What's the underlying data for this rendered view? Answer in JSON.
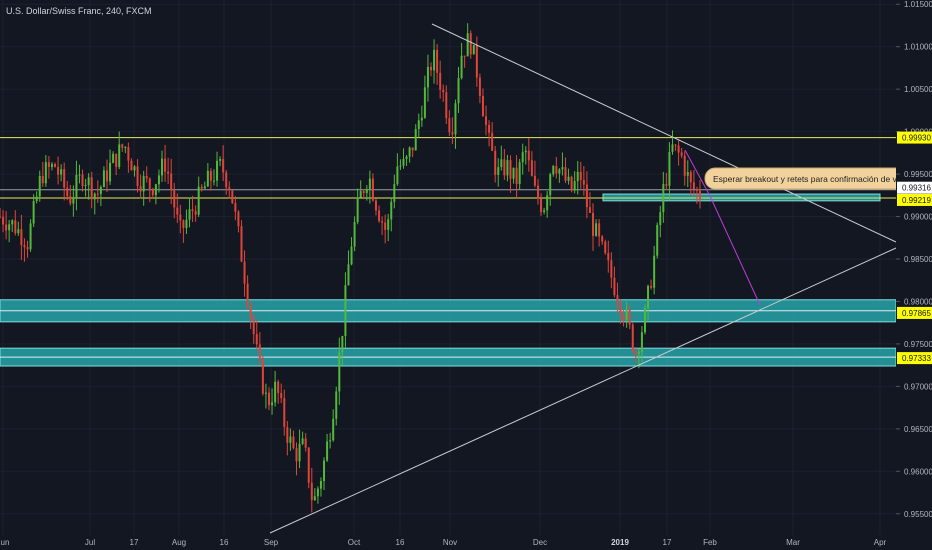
{
  "header": {
    "title": "U.S. Dollar/Swiss Franc, 240, FXCM"
  },
  "chart_data": {
    "type": "candlestick",
    "symbol": "U.S. Dollar/Swiss Franc",
    "interval": "240",
    "source": "FXCM",
    "ylim": [
      0.9525,
      1.0155
    ],
    "y_ticks": [
      "1.01500",
      "1.01000",
      "1.00500",
      "1.00000",
      "0.99500",
      "0.99000",
      "0.98500",
      "0.98000",
      "0.97500",
      "0.97000",
      "0.96500",
      "0.96000",
      "0.95500"
    ],
    "x_ticks": [
      "Jun",
      "Jul",
      "17",
      "Aug",
      "16",
      "Sep",
      "Oct",
      "16",
      "Nov",
      "Dec",
      "2019",
      "17",
      "Feb",
      "Mar",
      "Apr"
    ],
    "price_labels": [
      {
        "text": "0.99930",
        "value": 0.9993,
        "color": "#ffff00"
      },
      {
        "text": "0.99316",
        "value": 0.99316,
        "color": "#ffffff"
      },
      {
        "text": "0.99219",
        "value": 0.99219,
        "color": "#ffff00"
      },
      {
        "text": "0.97865",
        "value": 0.97865,
        "color": "#ffff00"
      },
      {
        "text": "0.97333",
        "value": 0.97333,
        "color": "#ffff00"
      }
    ],
    "horizontal_lines": [
      0.9993,
      0.99316,
      0.99219
    ],
    "zones": [
      [
        0.9776,
        0.9802
      ],
      [
        0.9724,
        0.9745
      ],
      [
        0.99185,
        0.99265
      ]
    ],
    "annotation": "Esperar breakout y retets para confirmación de ventas",
    "price_path": [
      [
        0,
        0.99
      ],
      [
        1.5,
        0.989
      ],
      [
        3,
        0.987
      ],
      [
        4.5,
        0.995
      ],
      [
        6,
        0.996
      ],
      [
        7.5,
        0.992
      ],
      [
        9,
        0.995
      ],
      [
        10.5,
        0.9925
      ],
      [
        12,
        0.996
      ],
      [
        13.5,
        0.9985
      ],
      [
        15,
        0.9945
      ],
      [
        16.5,
        0.9935
      ],
      [
        18,
        0.9965
      ],
      [
        19.5,
        0.988
      ],
      [
        21,
        0.991
      ],
      [
        22.5,
        0.994
      ],
      [
        24,
        0.996
      ],
      [
        25,
        0.9935
      ],
      [
        26,
        0.987
      ],
      [
        27,
        0.98
      ],
      [
        28,
        0.973
      ],
      [
        29,
        0.968
      ],
      [
        30,
        0.97
      ],
      [
        31,
        0.965
      ],
      [
        32,
        0.962
      ],
      [
        33,
        0.963
      ],
      [
        34,
        0.956
      ],
      [
        35,
        0.96
      ],
      [
        36,
        0.966
      ],
      [
        37,
        0.975
      ],
      [
        38,
        0.986
      ],
      [
        39,
        0.992
      ],
      [
        40,
        0.995
      ],
      [
        41,
        0.991
      ],
      [
        42,
        0.988
      ],
      [
        43,
        0.996
      ],
      [
        44,
        0.996
      ],
      [
        45,
        0.999
      ],
      [
        46,
        1.004
      ],
      [
        47,
        1.009
      ],
      [
        48,
        1.005
      ],
      [
        49,
        1.0
      ],
      [
        50,
        1.009
      ],
      [
        51,
        1.011
      ],
      [
        52,
        1.006
      ],
      [
        53,
        0.999
      ],
      [
        54,
        0.995
      ],
      [
        55,
        0.996
      ],
      [
        56,
        0.994
      ],
      [
        57,
        0.998
      ],
      [
        58,
        0.993
      ],
      [
        59,
        0.991
      ],
      [
        60,
        0.997
      ],
      [
        61,
        0.995
      ],
      [
        62,
        0.993
      ],
      [
        63,
        0.995
      ],
      [
        64,
        0.99
      ],
      [
        65,
        0.987
      ],
      [
        66,
        0.984
      ],
      [
        67,
        0.981
      ],
      [
        68,
        0.978
      ],
      [
        69,
        0.974
      ],
      [
        70,
        0.978
      ],
      [
        71,
        0.985
      ],
      [
        72,
        0.993
      ],
      [
        73,
        0.998
      ],
      [
        74,
        0.997
      ],
      [
        75,
        0.9935
      ],
      [
        76,
        0.9925
      ]
    ]
  }
}
